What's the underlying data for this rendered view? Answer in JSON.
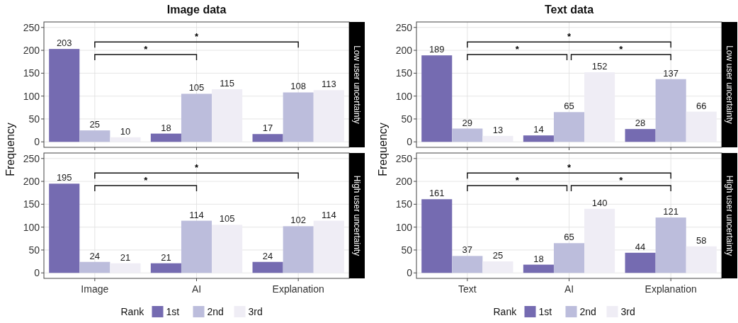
{
  "chart_data": [
    {
      "type": "bar",
      "title": "Image data",
      "subtitle": "Low user uncertainty",
      "ylabel": "Frequency",
      "categories": [
        null,
        null,
        null
      ],
      "series": [
        {
          "color": "#756bb1",
          "values": [
            203,
            18,
            17
          ]
        },
        {
          "color": "#bcbddc",
          "values": [
            25,
            105,
            108
          ]
        },
        {
          "color": "#efedf5",
          "values": [
            10,
            115,
            113
          ]
        }
      ],
      "ylim": [
        -12,
        262
      ],
      "yticks": [
        0,
        50,
        100,
        150,
        200,
        250
      ],
      "grid": true,
      "data_labels": true,
      "tick_labels": "y",
      "annotations": [
        "*",
        "*"
      ]
    },
    {
      "type": "bar",
      "title": "Text data",
      "subtitle": "Low user uncertainty",
      "ylabel": "Frequency",
      "categories": [
        null,
        null,
        null
      ],
      "series": [
        {
          "color": "#756bb1",
          "values": [
            189,
            14,
            28
          ]
        },
        {
          "color": "#bcbddc",
          "values": [
            29,
            65,
            137
          ]
        },
        {
          "color": "#efedf5",
          "values": [
            13,
            152,
            66
          ]
        }
      ],
      "ylim": [
        -12,
        262
      ],
      "yticks": [
        0,
        50,
        100,
        150,
        200,
        250
      ],
      "grid": true,
      "data_labels": true,
      "tick_labels": "y",
      "annotations": [
        "*",
        "*",
        "*"
      ]
    },
    {
      "type": "bar",
      "subtitle": "High user uncertainty",
      "legend_title": "Rank",
      "legend": "bottom",
      "categories": [
        "Image",
        "AI",
        "Explanation"
      ],
      "series": [
        {
          "name": "1st",
          "color": "#756bb1",
          "values": [
            195,
            21,
            24
          ]
        },
        {
          "name": "2nd",
          "color": "#bcbddc",
          "values": [
            24,
            114,
            102
          ]
        },
        {
          "name": "3rd",
          "color": "#efedf5",
          "values": [
            21,
            105,
            114
          ]
        }
      ],
      "ylim": [
        -12,
        262
      ],
      "yticks": [
        0,
        50,
        100,
        150,
        200,
        250
      ],
      "grid": true,
      "data_labels": true,
      "annotations": [
        "*",
        "*"
      ]
    },
    {
      "type": "bar",
      "subtitle": "High user uncertainty",
      "legend_title": "Rank",
      "legend": "bottom",
      "categories": [
        "Text",
        "AI",
        "Explanation"
      ],
      "series": [
        {
          "name": "1st",
          "color": "#756bb1",
          "values": [
            161,
            18,
            44
          ]
        },
        {
          "name": "2nd",
          "color": "#bcbddc",
          "values": [
            37,
            65,
            121
          ]
        },
        {
          "name": "3rd",
          "color": "#efedf5",
          "values": [
            25,
            140,
            58
          ]
        }
      ],
      "ylim": [
        -12,
        262
      ],
      "yticks": [
        0,
        50,
        100,
        150,
        200,
        250
      ],
      "grid": true,
      "data_labels": true,
      "annotations": [
        "*",
        "*",
        "*"
      ]
    }
  ]
}
